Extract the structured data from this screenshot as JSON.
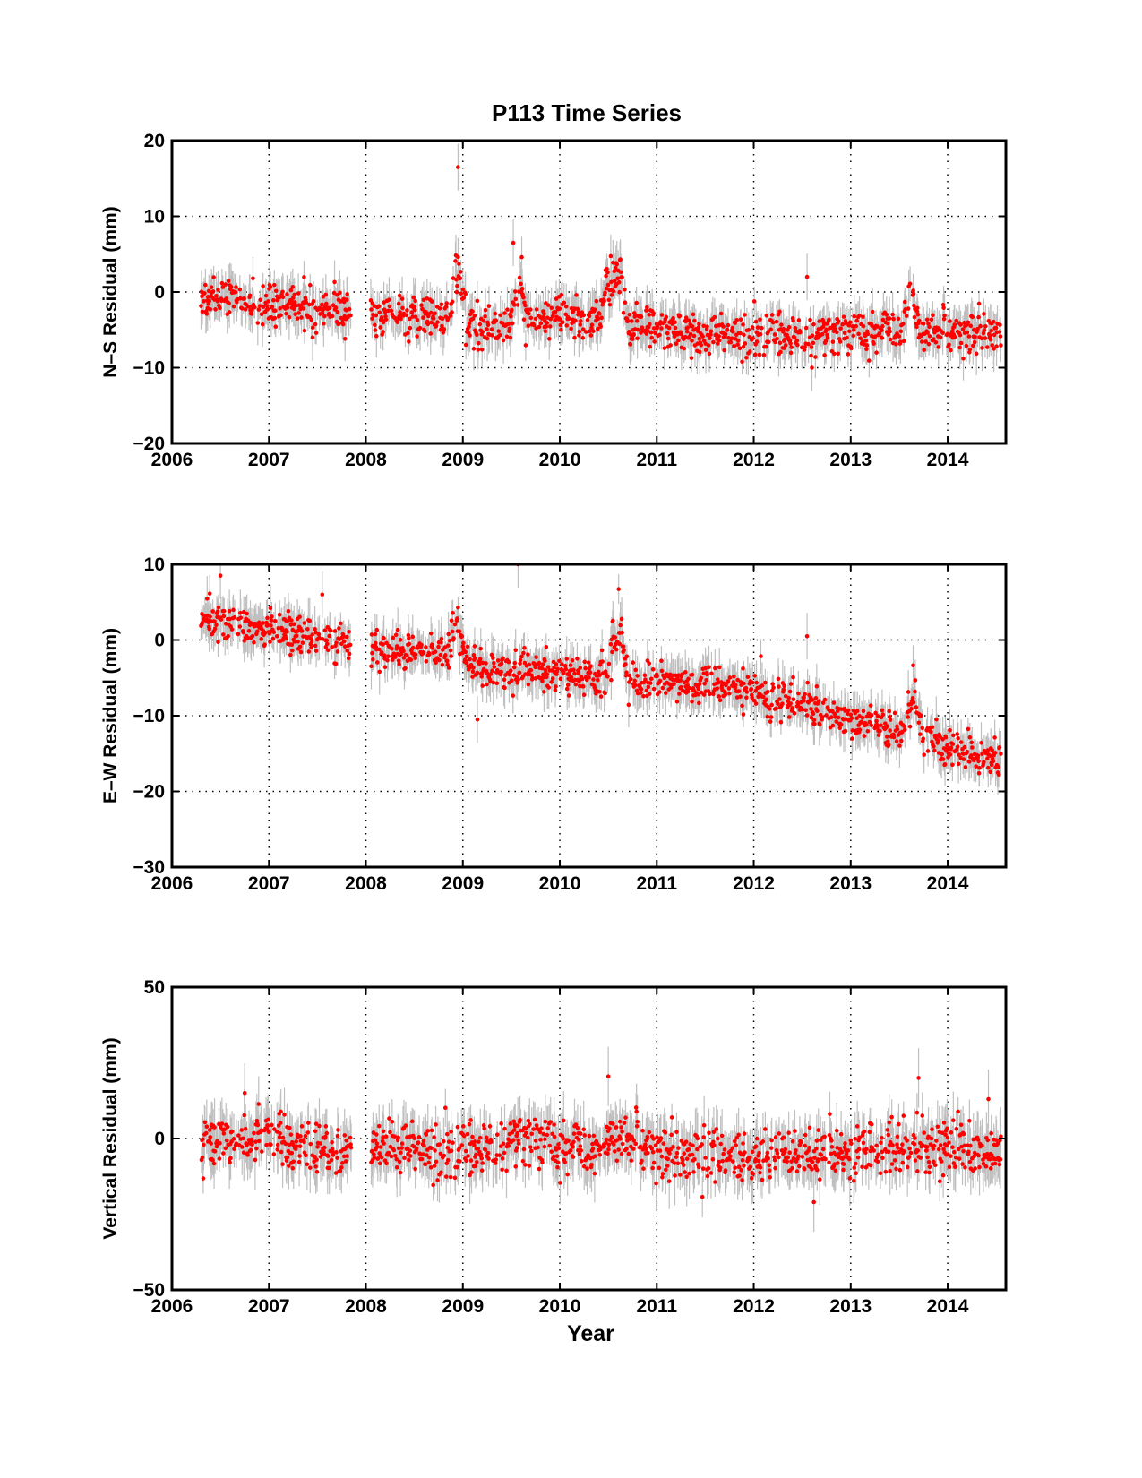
{
  "figure": {
    "title": "P113 Time Series",
    "colors": {
      "point": "#ff0000",
      "error_bar": "#bfbfbf",
      "frame": "#000000"
    }
  },
  "chart_data": [
    {
      "type": "scatter",
      "id": "ns",
      "title": "P113 Time Series",
      "ylabel": "N–S Residual (mm)",
      "xlabel": "",
      "xlim": [
        2006,
        2014.6
      ],
      "ylim": [
        -20,
        20
      ],
      "xticks": [
        "2006",
        "2007",
        "2008",
        "2009",
        "2010",
        "2011",
        "2012",
        "2013",
        "2014"
      ],
      "yticks": [
        "−20",
        "−10",
        "0",
        "10",
        "20"
      ],
      "yticks_values": [
        -20,
        -10,
        0,
        10,
        20
      ],
      "grid": true,
      "error_bars": true,
      "gaps": [
        [
          2007.85,
          2008.05
        ]
      ],
      "trend": [
        {
          "x": 2006.3,
          "y": -0.5
        },
        {
          "x": 2007.0,
          "y": -1.5
        },
        {
          "x": 2007.85,
          "y": -2.5
        },
        {
          "x": 2008.05,
          "y": -3.0
        },
        {
          "x": 2008.9,
          "y": -3.5
        },
        {
          "x": 2009.0,
          "y": -4.5
        },
        {
          "x": 2010.0,
          "y": -3.5
        },
        {
          "x": 2010.8,
          "y": -4.5
        },
        {
          "x": 2011.5,
          "y": -5.8
        },
        {
          "x": 2012.5,
          "y": -5.8
        },
        {
          "x": 2013.5,
          "y": -5.0
        },
        {
          "x": 2014.55,
          "y": -5.5
        }
      ],
      "transients": [
        {
          "x": 2008.95,
          "y": 6.5
        },
        {
          "x": 2009.58,
          "y": 4.0
        },
        {
          "x": 2010.5,
          "y": 5.0
        },
        {
          "x": 2010.62,
          "y": 6.0
        },
        {
          "x": 2013.62,
          "y": 3.5
        }
      ],
      "outliers": [
        {
          "x": 2008.95,
          "y": 16.5
        },
        {
          "x": 2009.52,
          "y": 6.5
        },
        {
          "x": 2012.55,
          "y": 2.0
        },
        {
          "x": 2012.6,
          "y": -10.0
        },
        {
          "x": 2007.45,
          "y": -6.0
        }
      ],
      "scatter_sd": 1.3,
      "error_sd": 2.2
    },
    {
      "type": "scatter",
      "id": "ew",
      "ylabel": "E–W Residual (mm)",
      "xlabel": "",
      "xlim": [
        2006,
        2014.6
      ],
      "ylim": [
        -30,
        10
      ],
      "xticks": [
        "2006",
        "2007",
        "2008",
        "2009",
        "2010",
        "2011",
        "2012",
        "2013",
        "2014"
      ],
      "yticks": [
        "−30",
        "−20",
        "−10",
        "0",
        "10"
      ],
      "yticks_values": [
        -30,
        -20,
        -10,
        0,
        10
      ],
      "grid": true,
      "error_bars": true,
      "gaps": [
        [
          2007.85,
          2008.05
        ]
      ],
      "trend": [
        {
          "x": 2006.3,
          "y": 2.5
        },
        {
          "x": 2007.0,
          "y": 1.5
        },
        {
          "x": 2007.85,
          "y": -0.5
        },
        {
          "x": 2008.05,
          "y": -1.0
        },
        {
          "x": 2008.9,
          "y": -2.0
        },
        {
          "x": 2009.0,
          "y": -3.5
        },
        {
          "x": 2010.0,
          "y": -4.5
        },
        {
          "x": 2011.0,
          "y": -5.5
        },
        {
          "x": 2011.8,
          "y": -6.5
        },
        {
          "x": 2012.5,
          "y": -8.5
        },
        {
          "x": 2013.0,
          "y": -11.0
        },
        {
          "x": 2013.5,
          "y": -12.0
        },
        {
          "x": 2014.55,
          "y": -16.0
        }
      ],
      "transients": [
        {
          "x": 2008.95,
          "y": 4.5
        },
        {
          "x": 2010.6,
          "y": 6.0
        },
        {
          "x": 2013.65,
          "y": -4.0
        }
      ],
      "outliers": [
        {
          "x": 2006.5,
          "y": 8.5
        },
        {
          "x": 2009.57,
          "y": 10.0
        },
        {
          "x": 2009.15,
          "y": -10.5
        },
        {
          "x": 2012.55,
          "y": 0.5
        },
        {
          "x": 2007.55,
          "y": 6.0
        }
      ],
      "scatter_sd": 1.2,
      "error_sd": 2.2
    },
    {
      "type": "scatter",
      "id": "up",
      "ylabel": "Vertical Residual (mm)",
      "xlabel": "Year",
      "xlim": [
        2006,
        2014.6
      ],
      "ylim": [
        -50,
        50
      ],
      "xticks": [
        "2006",
        "2007",
        "2008",
        "2009",
        "2010",
        "2011",
        "2012",
        "2013",
        "2014"
      ],
      "yticks": [
        "−50",
        "0",
        "50"
      ],
      "yticks_values": [
        -50,
        0,
        50
      ],
      "grid": true,
      "error_bars": true,
      "gaps": [
        [
          2007.85,
          2008.05
        ]
      ],
      "trend": [
        {
          "x": 2006.3,
          "y": -2.0
        },
        {
          "x": 2006.8,
          "y": 1.0
        },
        {
          "x": 2007.85,
          "y": -5.0
        },
        {
          "x": 2008.05,
          "y": -3.0
        },
        {
          "x": 2009.0,
          "y": -5.0
        },
        {
          "x": 2009.6,
          "y": 0.0
        },
        {
          "x": 2010.3,
          "y": -4.0
        },
        {
          "x": 2010.6,
          "y": 1.0
        },
        {
          "x": 2011.2,
          "y": -6.0
        },
        {
          "x": 2012.5,
          "y": -6.5
        },
        {
          "x": 2013.2,
          "y": -3.0
        },
        {
          "x": 2014.55,
          "y": -3.0
        }
      ],
      "transients": [],
      "outliers": [
        {
          "x": 2010.5,
          "y": 20.5
        },
        {
          "x": 2013.7,
          "y": 20.0
        },
        {
          "x": 2014.42,
          "y": 13.0
        },
        {
          "x": 2006.75,
          "y": 15.0
        },
        {
          "x": 2012.62,
          "y": -21.0
        }
      ],
      "scatter_sd": 4.2,
      "error_sd": 7.0
    }
  ]
}
